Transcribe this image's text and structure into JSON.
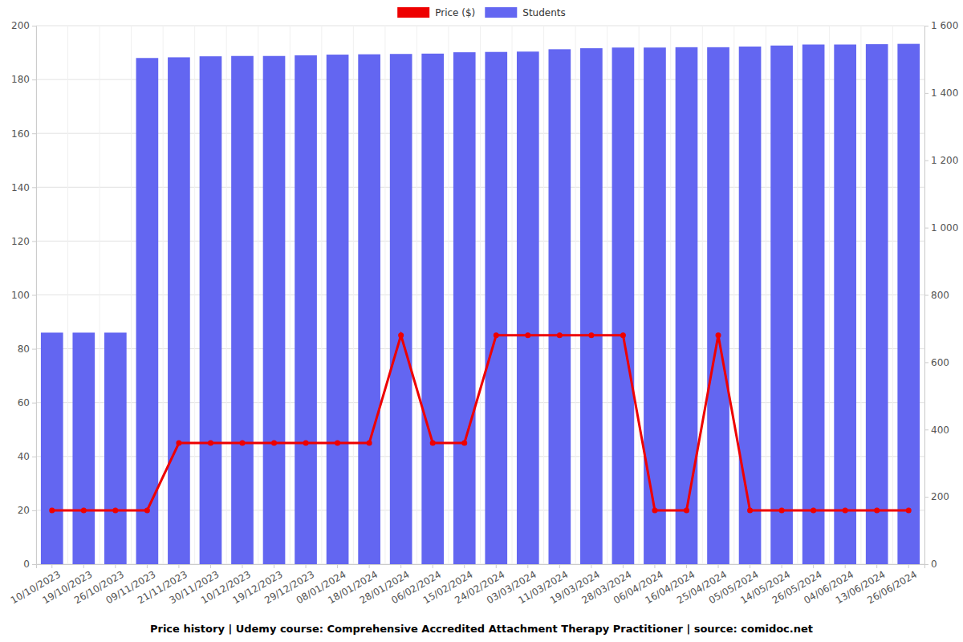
{
  "chart_data": {
    "type": "bar",
    "title": "Price history | Udemy course: Comprehensive Accredited Attachment Therapy Practitioner | source: comidoc.net",
    "categories": [
      "10/10/2023",
      "19/10/2023",
      "26/10/2023",
      "09/11/2023",
      "21/11/2023",
      "30/11/2023",
      "10/12/2023",
      "19/12/2023",
      "29/12/2023",
      "08/01/2024",
      "18/01/2024",
      "28/01/2024",
      "06/02/2024",
      "15/02/2024",
      "24/02/2024",
      "03/03/2024",
      "11/03/2024",
      "19/03/2024",
      "28/03/2024",
      "06/04/2024",
      "16/04/2024",
      "25/04/2024",
      "05/05/2024",
      "14/05/2024",
      "26/05/2024",
      "04/06/2024",
      "13/06/2024",
      "26/06/2024"
    ],
    "series": [
      {
        "name": "Price ($)",
        "type": "line",
        "color": "#ee0000",
        "marker": "circle",
        "axis": "y",
        "values": [
          20,
          20,
          20,
          20,
          45,
          45,
          45,
          45,
          45,
          45,
          45,
          85,
          45,
          45,
          85,
          85,
          85,
          85,
          85,
          20,
          20,
          85,
          20,
          20,
          20,
          20,
          20,
          20
        ]
      },
      {
        "name": "Students",
        "type": "bar",
        "color": "#6366f1",
        "axis": "y2",
        "values": [
          688,
          688,
          688,
          1504,
          1506,
          1509,
          1510,
          1510,
          1512,
          1514,
          1515,
          1516,
          1517,
          1521,
          1522,
          1523,
          1530,
          1533,
          1535,
          1535,
          1536,
          1536,
          1538,
          1541,
          1544,
          1544,
          1545,
          1546
        ]
      }
    ],
    "ylim": [
      0,
      200
    ],
    "yticks": [
      0,
      20,
      40,
      60,
      80,
      100,
      120,
      140,
      160,
      180,
      200
    ],
    "y2lim": [
      0,
      1600
    ],
    "y2ticks": [
      0,
      200,
      400,
      600,
      800,
      {
        "value": 1000,
        "label": "1 000"
      },
      {
        "value": 1200,
        "label": "1 200"
      },
      {
        "value": 1400,
        "label": "1 400"
      },
      {
        "value": 1600,
        "label": "1 600"
      }
    ],
    "grid": true,
    "legend": "top"
  }
}
